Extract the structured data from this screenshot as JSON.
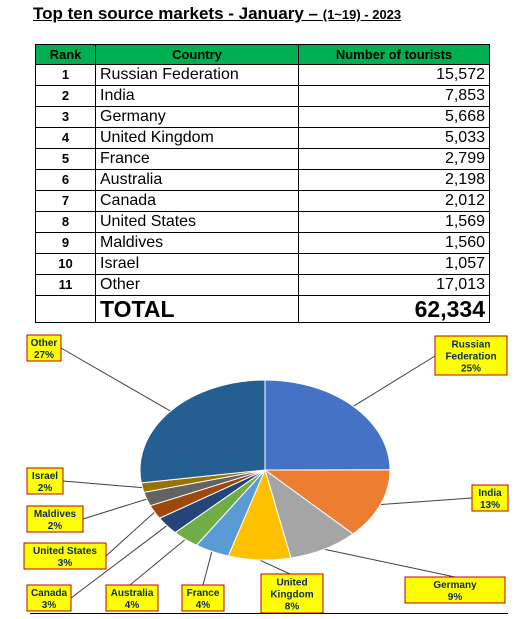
{
  "title": {
    "main": "Top ten source markets  -  January – ",
    "range": "(1~19) - 2023"
  },
  "table": {
    "headers": [
      "Rank",
      "Country",
      "Number of tourists"
    ],
    "rows": [
      {
        "rank": "1",
        "country": "Russian Federation",
        "value": "15,572"
      },
      {
        "rank": "2",
        "country": "India",
        "value": "7,853"
      },
      {
        "rank": "3",
        "country": "Germany",
        "value": "5,668"
      },
      {
        "rank": "4",
        "country": "United Kingdom",
        "value": "5,033"
      },
      {
        "rank": "5",
        "country": "France",
        "value": "2,799"
      },
      {
        "rank": "6",
        "country": "Australia",
        "value": "2,198"
      },
      {
        "rank": "7",
        "country": "Canada",
        "value": "2,012"
      },
      {
        "rank": "8",
        "country": "United States",
        "value": "1,569"
      },
      {
        "rank": "9",
        "country": "Maldives",
        "value": "1,560"
      },
      {
        "rank": "10",
        "country": "Israel",
        "value": "1,057"
      },
      {
        "rank": "11",
        "country": "Other",
        "value": "17,013"
      }
    ],
    "total_label": "TOTAL",
    "total_value": "62,334"
  },
  "chart_data": {
    "type": "pie",
    "slices": [
      {
        "name": "Russian Federation",
        "value": 15572,
        "label": [
          "Russian",
          "Federation",
          "25%"
        ],
        "color": "#4472c4"
      },
      {
        "name": "India",
        "value": 7853,
        "label": [
          "India",
          "13%"
        ],
        "color": "#ed7d31"
      },
      {
        "name": "Germany",
        "value": 5668,
        "label": [
          "Germany",
          "9%"
        ],
        "color": "#a5a5a5"
      },
      {
        "name": "United Kingdom",
        "value": 5033,
        "label": [
          "United",
          "Kingdom",
          "8%"
        ],
        "color": "#ffc000"
      },
      {
        "name": "France",
        "value": 2799,
        "label": [
          "France",
          "4%"
        ],
        "color": "#5b9bd5"
      },
      {
        "name": "Australia",
        "value": 2198,
        "label": [
          "Australia",
          "4%"
        ],
        "color": "#70ad47"
      },
      {
        "name": "Canada",
        "value": 2012,
        "label": [
          "Canada",
          "3%"
        ],
        "color": "#264478"
      },
      {
        "name": "United States",
        "value": 1569,
        "label": [
          "United States",
          "3%"
        ],
        "color": "#9e480e"
      },
      {
        "name": "Maldives",
        "value": 1560,
        "label": [
          "Maldives",
          "2%"
        ],
        "color": "#636363"
      },
      {
        "name": "Israel",
        "value": 1057,
        "label": [
          "Israel",
          "2%"
        ],
        "color": "#997300"
      },
      {
        "name": "Other",
        "value": 17013,
        "label": [
          "Other",
          "27%"
        ],
        "color": "#255e91"
      }
    ],
    "label_box_fill": "#ffff00",
    "label_box_stroke": "#c00000"
  }
}
